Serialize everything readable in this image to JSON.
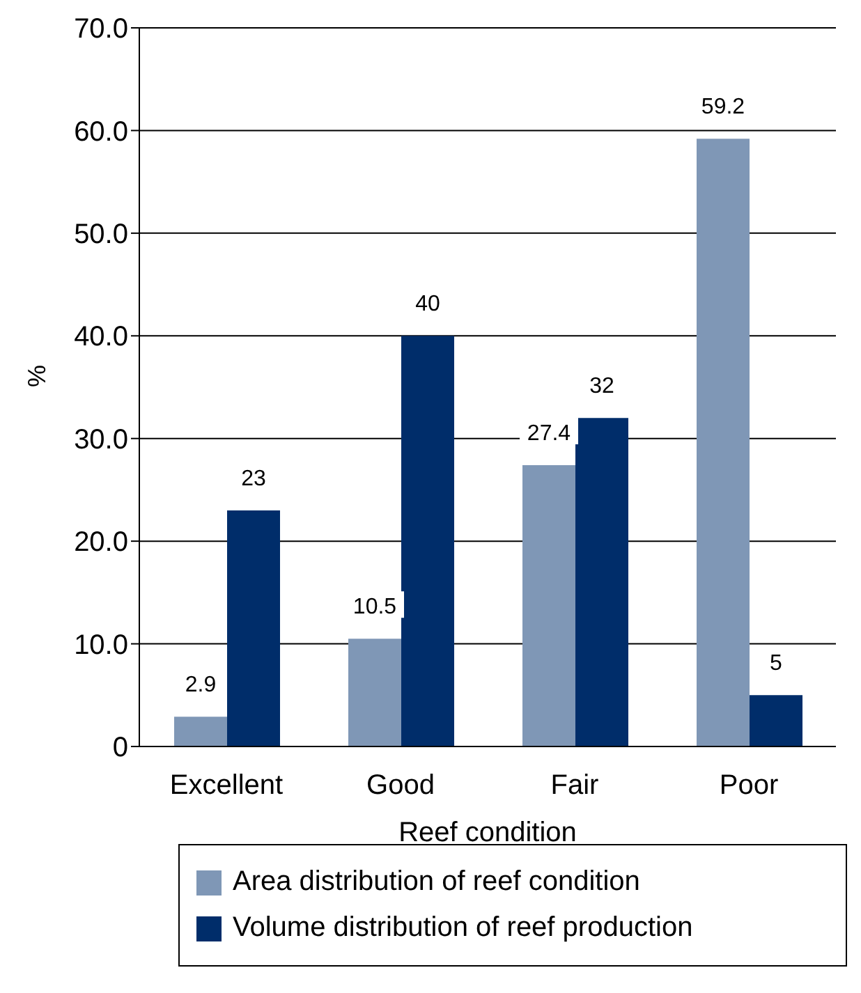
{
  "chart_data": {
    "type": "bar",
    "xlabel": "Reef condition",
    "ylabel": "%",
    "categories": [
      "Excellent",
      "Good",
      "Fair",
      "Poor"
    ],
    "series": [
      {
        "name": "Area distribution of reef condition",
        "color": "#7f97b6",
        "values": [
          2.9,
          10.5,
          27.4,
          59.2
        ]
      },
      {
        "name": "Volume distribution of reef production",
        "color": "#002d6a",
        "values": [
          23,
          40,
          32,
          5
        ]
      }
    ],
    "ylim": [
      0,
      70
    ],
    "yticks": [
      0,
      {
        "value": 10,
        "label": "10.0"
      },
      {
        "value": 20,
        "label": "20.0"
      },
      {
        "value": 30,
        "label": "30.0"
      },
      {
        "value": 40,
        "label": "40.0"
      },
      {
        "value": 50,
        "label": "50.0"
      },
      {
        "value": 60,
        "label": "60.0"
      },
      {
        "value": 70,
        "label": "70.0"
      }
    ],
    "grid": "y",
    "legend": "bottom",
    "data_labels": true
  }
}
